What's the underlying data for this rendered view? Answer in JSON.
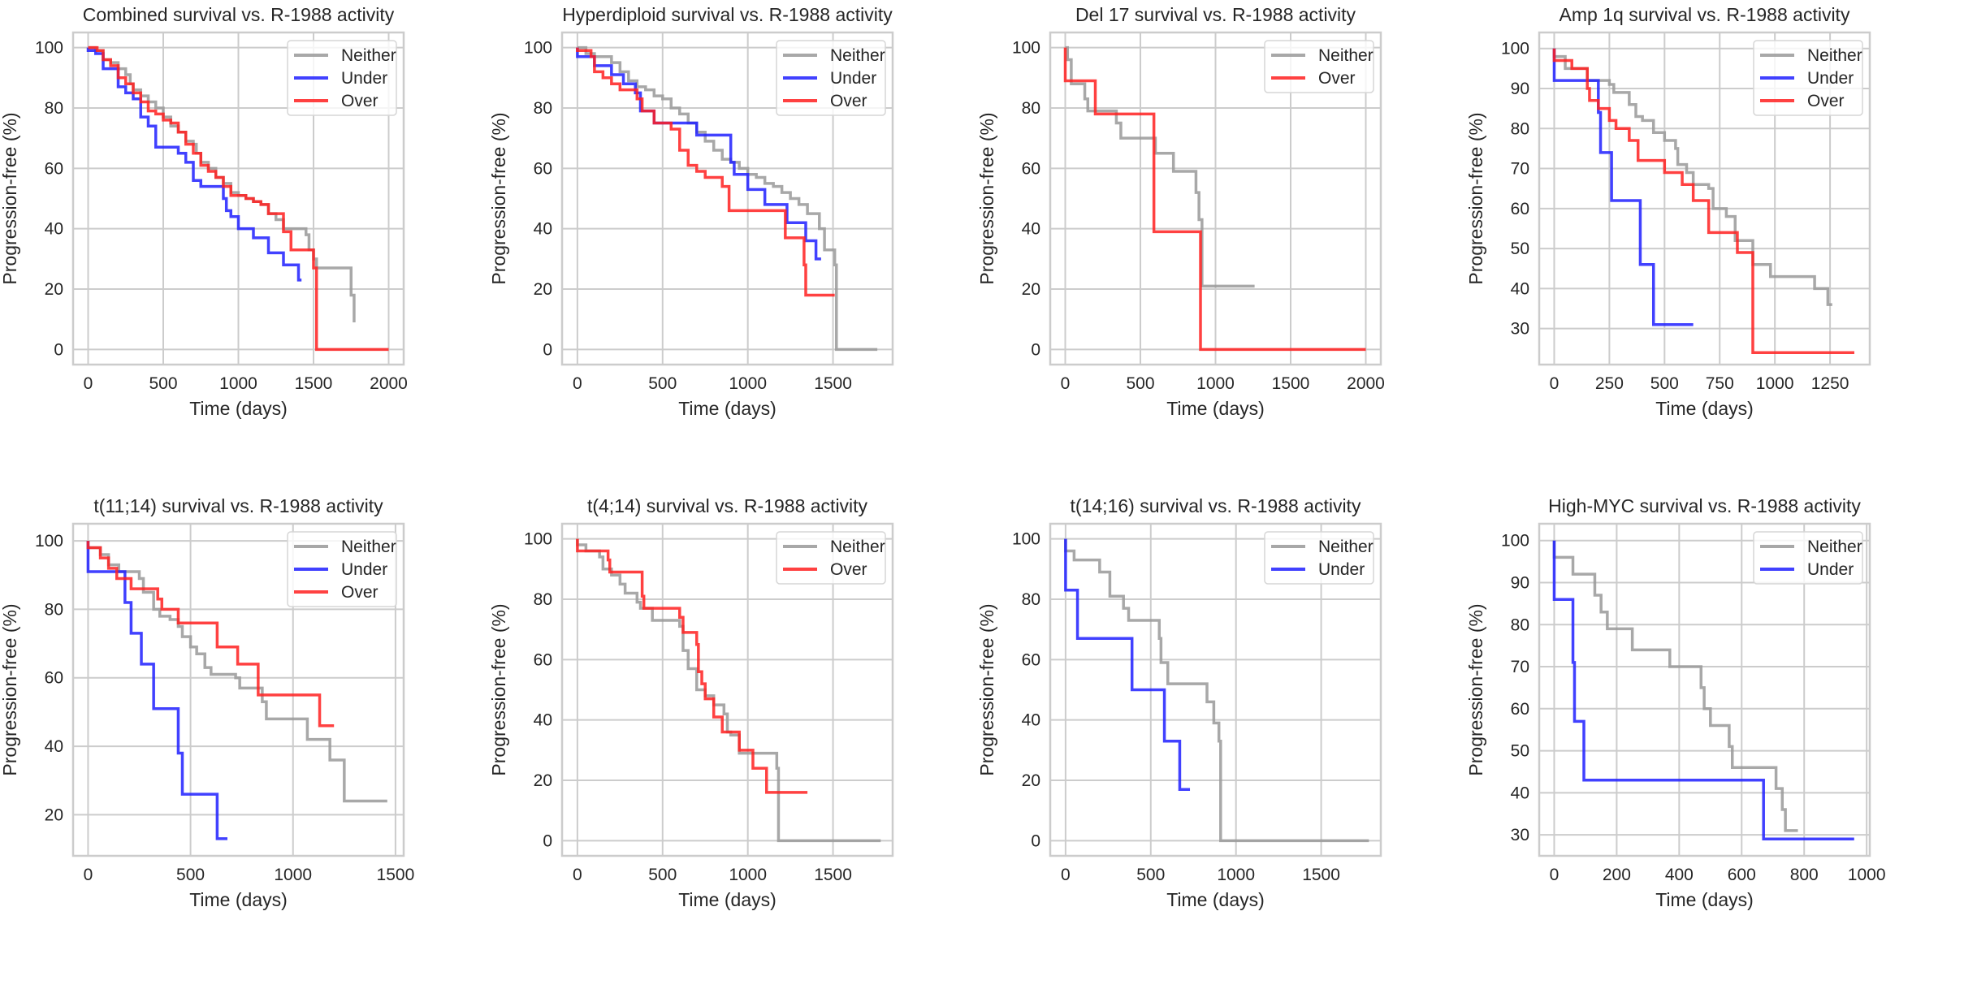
{
  "colors": {
    "Neither": "#999999",
    "Under": "#2020ff",
    "Over": "#ff2020",
    "grid": "#cccccc",
    "frame": "#cccccc"
  },
  "chart_data": [
    {
      "type": "line",
      "step": true,
      "title": "Combined survival vs. R-1988 activity",
      "xlabel": "Time (days)",
      "ylabel": "Progression-free (%)",
      "xlim": [
        -100,
        2100
      ],
      "ylim": [
        -5,
        105
      ],
      "xticks": [
        0,
        500,
        1000,
        1500,
        2000
      ],
      "yticks": [
        0,
        20,
        40,
        60,
        80,
        100
      ],
      "grid": true,
      "legend": "top-right",
      "legend_entries": [
        "Neither",
        "Under",
        "Over"
      ],
      "series": [
        {
          "name": "Neither",
          "x": [
            0,
            50,
            100,
            150,
            200,
            250,
            280,
            300,
            350,
            400,
            450,
            500,
            550,
            600,
            650,
            700,
            720,
            750,
            800,
            850,
            900,
            950,
            1000,
            1050,
            1100,
            1150,
            1200,
            1250,
            1300,
            1450,
            1470,
            1500,
            1520,
            1750,
            1770
          ],
          "y": [
            100,
            99,
            96,
            95,
            93,
            91,
            88,
            86,
            84,
            82,
            80,
            77,
            74,
            72,
            69,
            68,
            65,
            62,
            60,
            57,
            55,
            52,
            51,
            50,
            49,
            48,
            45,
            43,
            40,
            38,
            33,
            30,
            27,
            18,
            9
          ]
        },
        {
          "name": "Under",
          "x": [
            0,
            50,
            100,
            200,
            250,
            300,
            350,
            400,
            450,
            500,
            600,
            650,
            700,
            750,
            900,
            920,
            950,
            1000,
            1100,
            1200,
            1300,
            1400,
            1420
          ],
          "y": [
            99,
            98,
            93,
            87,
            85,
            83,
            77,
            74,
            67,
            67,
            65,
            62,
            56,
            54,
            50,
            46,
            44,
            40,
            37,
            32,
            28,
            23,
            23
          ]
        },
        {
          "name": "Over",
          "x": [
            0,
            60,
            100,
            150,
            200,
            250,
            300,
            350,
            400,
            450,
            500,
            550,
            600,
            650,
            700,
            750,
            800,
            850,
            900,
            950,
            1050,
            1100,
            1150,
            1200,
            1300,
            1350,
            1500,
            1520,
            2000
          ],
          "y": [
            100,
            99,
            96,
            94,
            90,
            88,
            85,
            82,
            79,
            78,
            76,
            75,
            72,
            68,
            65,
            61,
            59,
            57,
            54,
            51,
            50,
            49,
            48,
            45,
            39,
            33,
            27,
            0,
            0
          ]
        }
      ]
    },
    {
      "type": "line",
      "step": true,
      "title": "Hyperdiploid survival vs. R-1988 activity",
      "xlabel": "Time (days)",
      "ylabel": "Progression-free (%)",
      "xlim": [
        -90,
        1850
      ],
      "ylim": [
        -5,
        105
      ],
      "xticks": [
        0,
        500,
        1000,
        1500
      ],
      "yticks": [
        0,
        20,
        40,
        60,
        80,
        100
      ],
      "grid": true,
      "legend": "top-right",
      "legend_entries": [
        "Neither",
        "Under",
        "Over"
      ],
      "series": [
        {
          "name": "Neither",
          "x": [
            0,
            50,
            100,
            200,
            250,
            300,
            350,
            400,
            450,
            500,
            550,
            600,
            650,
            700,
            750,
            800,
            850,
            900,
            950,
            1000,
            1050,
            1100,
            1150,
            1200,
            1250,
            1300,
            1350,
            1400,
            1420,
            1450,
            1510,
            1520,
            1760
          ],
          "y": [
            100,
            98,
            97,
            95,
            92,
            89,
            87,
            86,
            84,
            83,
            80,
            78,
            75,
            72,
            69,
            66,
            63,
            62,
            60,
            58,
            57,
            55,
            54,
            52,
            50,
            48,
            45,
            45,
            40,
            33,
            28,
            0,
            0
          ]
        },
        {
          "name": "Under",
          "x": [
            0,
            100,
            200,
            270,
            340,
            370,
            450,
            700,
            900,
            920,
            1000,
            1100,
            1230,
            1340,
            1400,
            1430
          ],
          "y": [
            97,
            94,
            91,
            88,
            85,
            79,
            75,
            71,
            62,
            58,
            53,
            48,
            42,
            36,
            30,
            30
          ]
        },
        {
          "name": "Over",
          "x": [
            0,
            80,
            100,
            150,
            200,
            250,
            350,
            380,
            400,
            450,
            550,
            600,
            650,
            700,
            750,
            850,
            890,
            1220,
            1330,
            1340,
            1510
          ],
          "y": [
            99,
            97,
            92,
            90,
            88,
            86,
            83,
            79,
            79,
            75,
            73,
            66,
            61,
            59,
            57,
            54,
            46,
            37,
            28,
            18,
            18
          ]
        }
      ]
    },
    {
      "type": "line",
      "step": true,
      "title": "Del 17 survival vs. R-1988 activity",
      "xlabel": "Time (days)",
      "ylabel": "Progression-free (%)",
      "xlim": [
        -100,
        2100
      ],
      "ylim": [
        -5,
        105
      ],
      "xticks": [
        0,
        500,
        1000,
        1500,
        2000
      ],
      "yticks": [
        0,
        20,
        40,
        60,
        80,
        100
      ],
      "grid": true,
      "legend": "top-right",
      "legend_entries": [
        "Neither",
        "Over"
      ],
      "series": [
        {
          "name": "Neither",
          "x": [
            0,
            15,
            40,
            130,
            150,
            340,
            370,
            600,
            720,
            870,
            890,
            910,
            1260
          ],
          "y": [
            100,
            96,
            88,
            83,
            79,
            75,
            70,
            65,
            59,
            52,
            43,
            21,
            21
          ]
        },
        {
          "name": "Over",
          "x": [
            0,
            200,
            590,
            900,
            2000
          ],
          "y": [
            89,
            78,
            39,
            0,
            0
          ]
        }
      ]
    },
    {
      "type": "line",
      "step": true,
      "title": "Amp 1q survival vs. R-1988 activity",
      "xlabel": "Time (days)",
      "ylabel": "Progression-free (%)",
      "xlim": [
        -68,
        1430
      ],
      "ylim": [
        21,
        104
      ],
      "xticks": [
        0,
        250,
        500,
        750,
        1000,
        1250
      ],
      "yticks": [
        30,
        40,
        50,
        60,
        70,
        80,
        90,
        100
      ],
      "grid": true,
      "legend": "top-right",
      "legend_entries": [
        "Neither",
        "Under",
        "Over"
      ],
      "series": [
        {
          "name": "Neither",
          "x": [
            0,
            50,
            150,
            250,
            270,
            340,
            370,
            400,
            450,
            500,
            550,
            560,
            600,
            630,
            700,
            720,
            780,
            820,
            900,
            980,
            1180,
            1240,
            1260
          ],
          "y": [
            98,
            95,
            92,
            91,
            89,
            86,
            83,
            82,
            79,
            77,
            75,
            71,
            69,
            66,
            65,
            60,
            58,
            52,
            46,
            43,
            40,
            36,
            36
          ]
        },
        {
          "name": "Under",
          "x": [
            0,
            200,
            210,
            260,
            390,
            450,
            630
          ],
          "y": [
            92,
            84,
            74,
            62,
            46,
            31,
            31
          ]
        },
        {
          "name": "Over",
          "x": [
            0,
            80,
            150,
            160,
            200,
            250,
            280,
            340,
            380,
            500,
            580,
            630,
            700,
            830,
            900,
            1360
          ],
          "y": [
            97,
            95,
            90,
            87,
            85,
            82,
            80,
            77,
            72,
            69,
            66,
            62,
            54,
            49,
            24,
            24
          ]
        }
      ]
    },
    {
      "type": "line",
      "step": true,
      "title": "t(11;14) survival vs. R-1988 activity",
      "xlabel": "Time (days)",
      "ylabel": "Progression-free (%)",
      "xlim": [
        -73,
        1540
      ],
      "ylim": [
        8,
        105
      ],
      "xticks": [
        0,
        500,
        1000,
        1500
      ],
      "yticks": [
        20,
        40,
        60,
        80,
        100
      ],
      "grid": true,
      "legend": "top-right",
      "legend_entries": [
        "Neither",
        "Under",
        "Over"
      ],
      "series": [
        {
          "name": "Neither",
          "x": [
            0,
            60,
            100,
            150,
            250,
            270,
            320,
            350,
            400,
            440,
            460,
            500,
            530,
            570,
            600,
            720,
            740,
            850,
            870,
            1070,
            1180,
            1250,
            1460
          ],
          "y": [
            98,
            96,
            93,
            91,
            89,
            85,
            80,
            78,
            77,
            75,
            72,
            69,
            67,
            63,
            61,
            60,
            57,
            53,
            48,
            42,
            36,
            24,
            24
          ]
        },
        {
          "name": "Under",
          "x": [
            0,
            180,
            210,
            260,
            320,
            440,
            460,
            630,
            680
          ],
          "y": [
            91,
            82,
            73,
            64,
            51,
            38,
            26,
            13,
            13
          ]
        },
        {
          "name": "Over",
          "x": [
            0,
            60,
            100,
            140,
            210,
            340,
            360,
            440,
            630,
            730,
            830,
            1130,
            1200
          ],
          "y": [
            98,
            95,
            92,
            89,
            86,
            83,
            80,
            76,
            69,
            64,
            55,
            46,
            46
          ]
        }
      ]
    },
    {
      "type": "line",
      "step": true,
      "title": "t(4;14) survival vs. R-1988 activity",
      "xlabel": "Time (days)",
      "ylabel": "Progression-free (%)",
      "xlim": [
        -90,
        1850
      ],
      "ylim": [
        -5,
        105
      ],
      "xticks": [
        0,
        500,
        1000,
        1500
      ],
      "yticks": [
        0,
        20,
        40,
        60,
        80,
        100
      ],
      "grid": true,
      "legend": "top-right",
      "legend_entries": [
        "Neither",
        "Over"
      ],
      "series": [
        {
          "name": "Neither",
          "x": [
            0,
            50,
            130,
            150,
            200,
            250,
            280,
            350,
            370,
            440,
            600,
            620,
            650,
            700,
            750,
            800,
            860,
            880,
            900,
            950,
            1000,
            1170,
            1180,
            1780
          ],
          "y": [
            98,
            96,
            94,
            90,
            88,
            85,
            82,
            79,
            77,
            73,
            71,
            63,
            57,
            50,
            48,
            45,
            42,
            36,
            35,
            29,
            29,
            24,
            0,
            0
          ]
        },
        {
          "name": "Over",
          "x": [
            0,
            180,
            190,
            380,
            390,
            600,
            620,
            700,
            710,
            730,
            750,
            800,
            850,
            950,
            1030,
            1110,
            1350
          ],
          "y": [
            96,
            93,
            89,
            81,
            77,
            74,
            69,
            65,
            56,
            52,
            47,
            41,
            36,
            30,
            24,
            16,
            16
          ]
        }
      ]
    },
    {
      "type": "line",
      "step": true,
      "title": "t(14;16) survival vs. R-1988 activity",
      "xlabel": "Time (days)",
      "ylabel": "Progression-free (%)",
      "xlim": [
        -90,
        1850
      ],
      "ylim": [
        -5,
        105
      ],
      "xticks": [
        0,
        500,
        1000,
        1500
      ],
      "yticks": [
        0,
        20,
        40,
        60,
        80,
        100
      ],
      "grid": true,
      "legend": "top-right",
      "legend_entries": [
        "Neither",
        "Under"
      ],
      "series": [
        {
          "name": "Neither",
          "x": [
            0,
            50,
            200,
            260,
            340,
            370,
            550,
            560,
            600,
            830,
            870,
            900,
            910,
            1780
          ],
          "y": [
            96,
            93,
            89,
            81,
            77,
            73,
            67,
            59,
            52,
            46,
            39,
            33,
            0,
            0
          ]
        },
        {
          "name": "Under",
          "x": [
            0,
            70,
            390,
            580,
            670,
            730
          ],
          "y": [
            83,
            67,
            50,
            33,
            17,
            17
          ]
        }
      ]
    },
    {
      "type": "line",
      "step": true,
      "title": "High-MYC survival vs. R-1988 activity",
      "xlabel": "Time (days)",
      "ylabel": "Progression-free (%)",
      "xlim": [
        -48,
        1010
      ],
      "ylim": [
        25,
        104
      ],
      "xticks": [
        0,
        200,
        400,
        600,
        800,
        1000
      ],
      "yticks": [
        30,
        40,
        50,
        60,
        70,
        80,
        90,
        100
      ],
      "grid": true,
      "legend": "top-right",
      "legend_entries": [
        "Neither",
        "Under"
      ],
      "series": [
        {
          "name": "Neither",
          "x": [
            0,
            60,
            130,
            150,
            170,
            250,
            370,
            470,
            480,
            500,
            560,
            570,
            710,
            730,
            740,
            780
          ],
          "y": [
            96,
            92,
            87,
            83,
            79,
            74,
            70,
            65,
            60,
            56,
            51,
            46,
            41,
            36,
            31,
            31
          ]
        },
        {
          "name": "Under",
          "x": [
            0,
            60,
            65,
            95,
            670,
            960
          ],
          "y": [
            86,
            71,
            57,
            43,
            29,
            29
          ]
        }
      ]
    }
  ]
}
